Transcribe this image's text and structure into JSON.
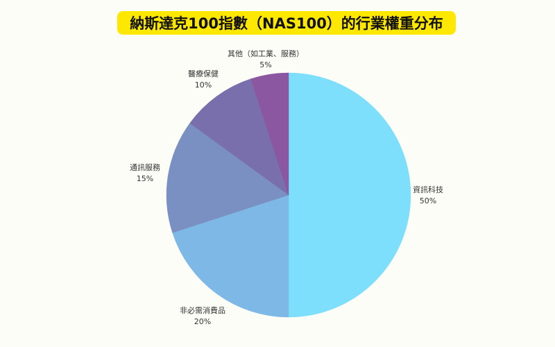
{
  "title": "納斯達克100指數（NAS100）的行業權重分布",
  "chart_data": {
    "type": "pie",
    "title": "納斯達克100指數（NAS100）的行業權重分布",
    "categories": [
      "資訊科技",
      "非必需消費品",
      "通訊服務",
      "醫療保健",
      "其他（如工業、服務）"
    ],
    "values": [
      50,
      20,
      15,
      10,
      5
    ],
    "value_labels": [
      "50%",
      "20%",
      "15%",
      "10%",
      "5%"
    ],
    "colors": [
      "#7ddffc",
      "#7eb8e6",
      "#7a90c2",
      "#7a6fad",
      "#8a57a0"
    ],
    "start_angle": "12 o'clock",
    "direction": "clockwise",
    "legend": "none (labels outside slices)"
  },
  "colors": {
    "background": "#fdfdf8",
    "title_background": "#ffe800"
  }
}
